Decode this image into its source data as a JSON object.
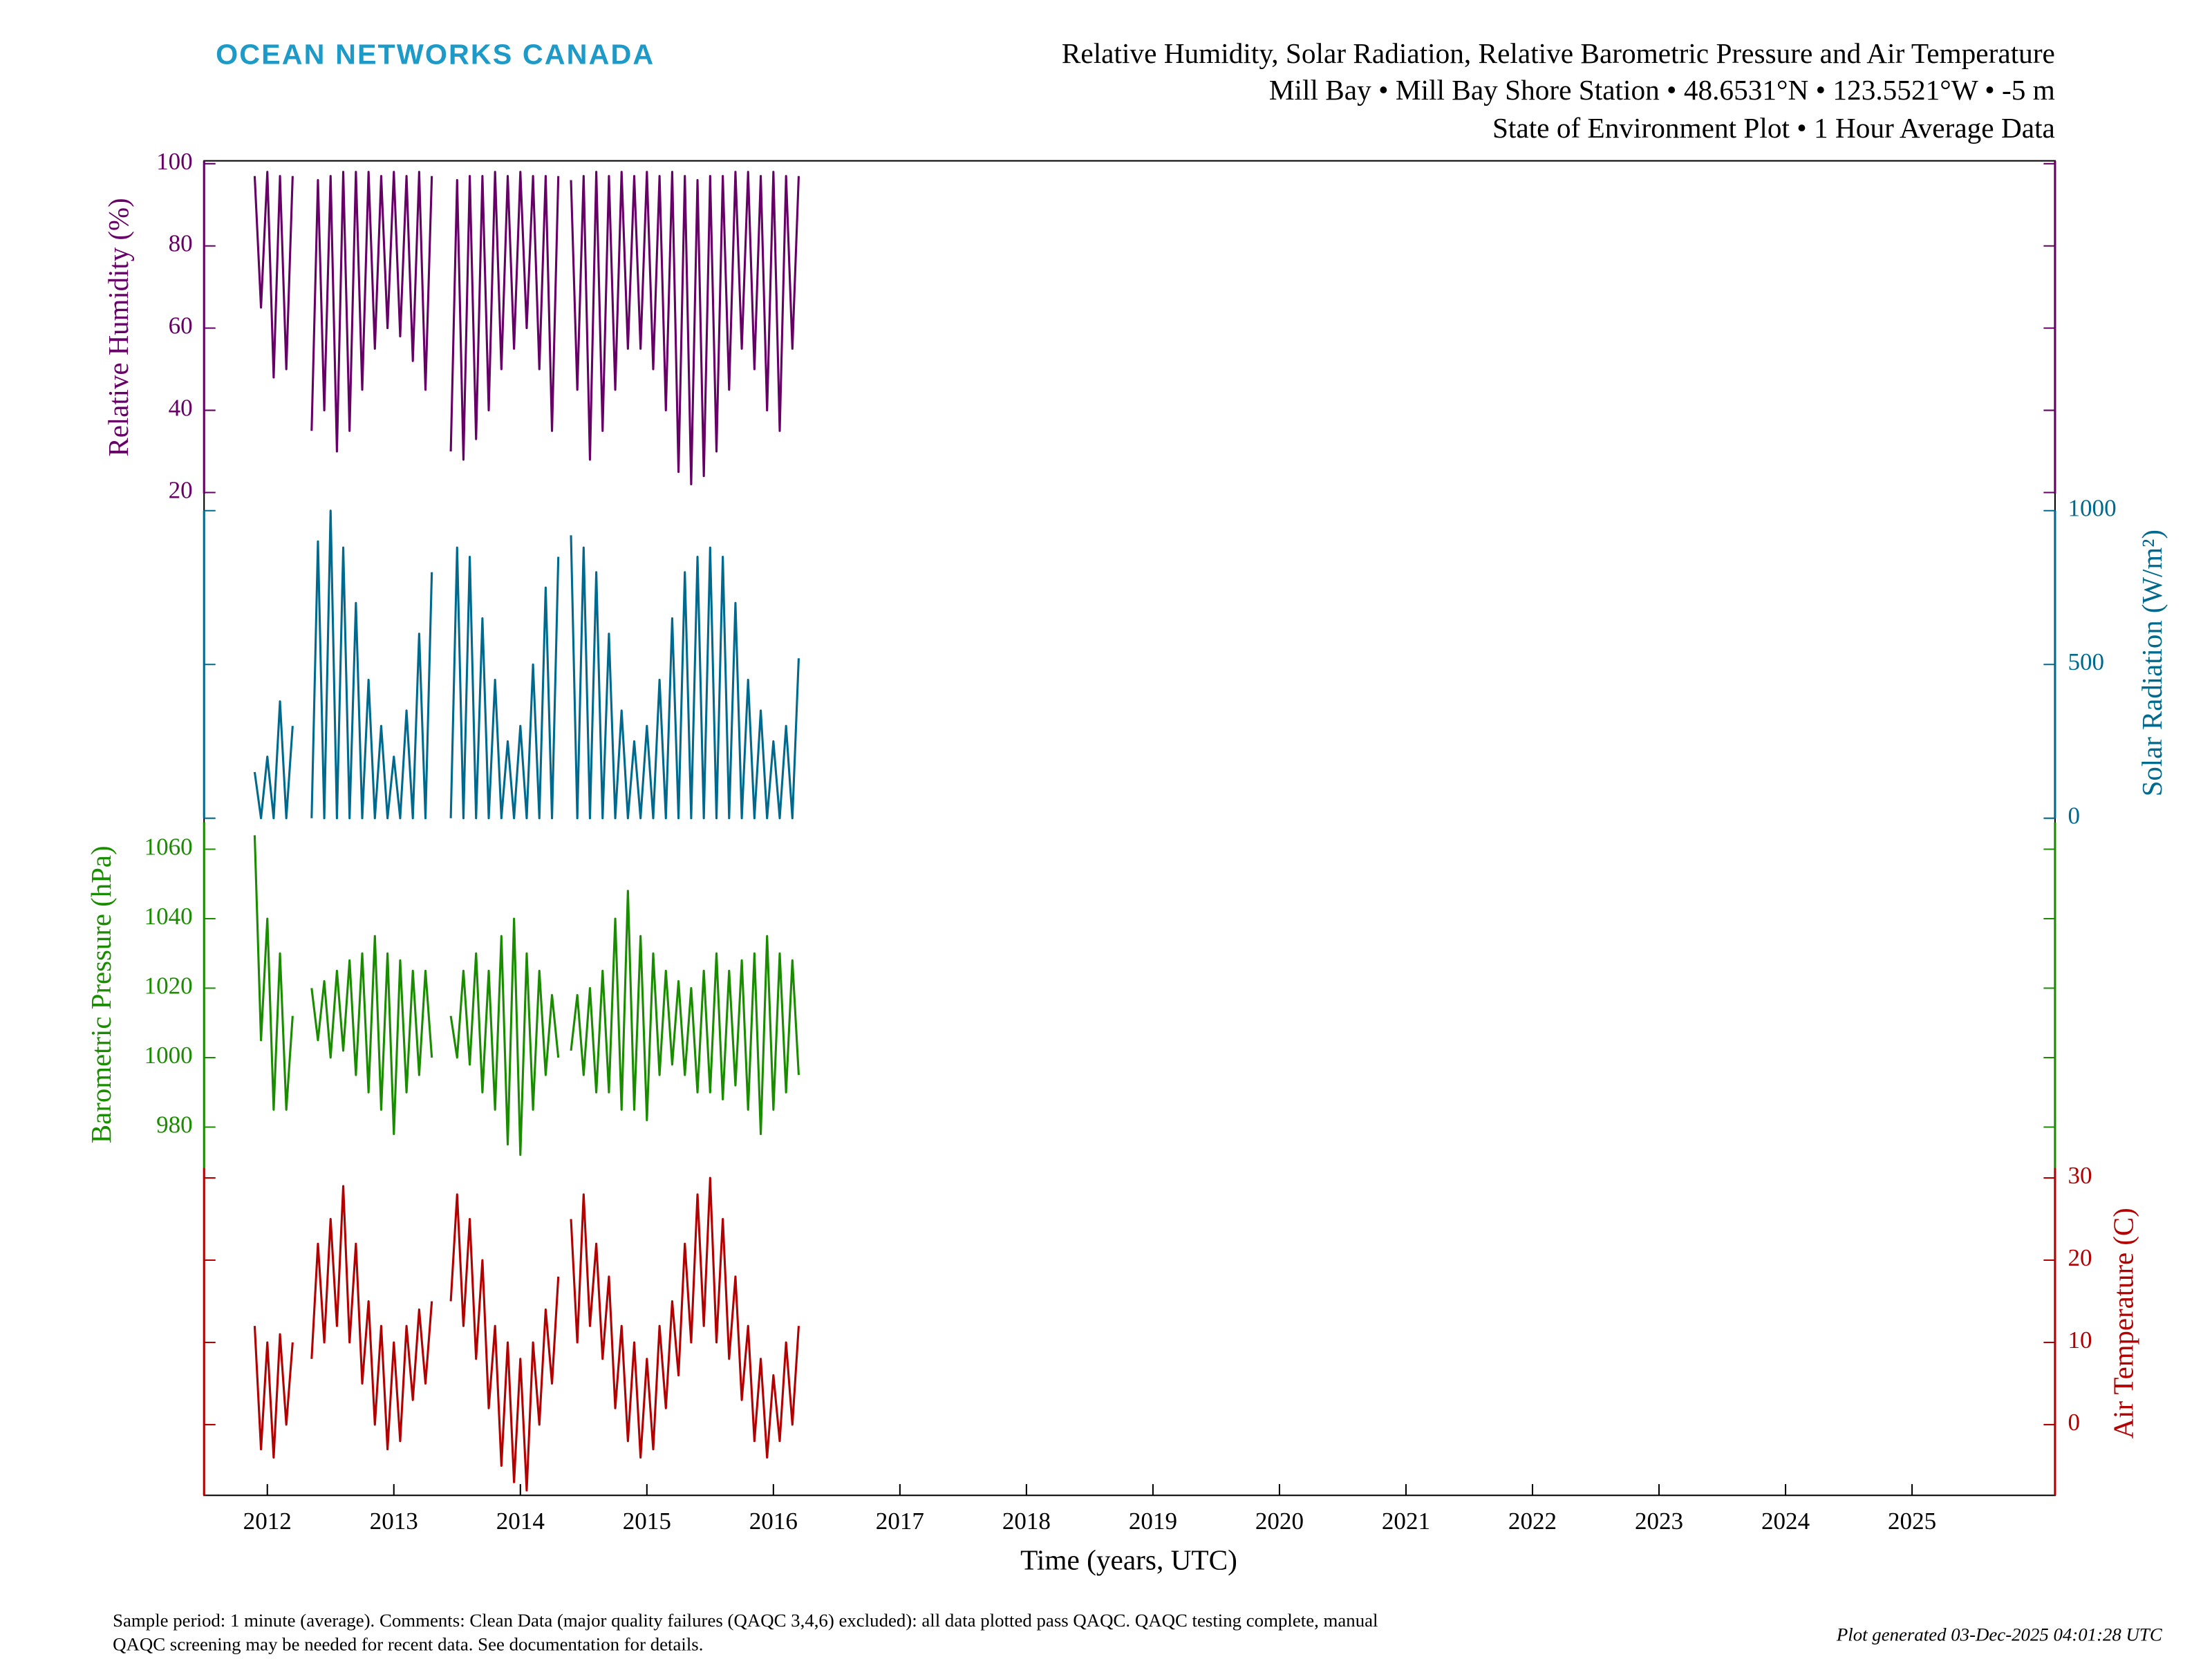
{
  "chart_data": {
    "type": "line",
    "logo": "OCEAN NETWORKS CANADA",
    "title": [
      "Relative Humidity, Solar Radiation, Relative Barometric Pressure and Air Temperature",
      "Mill Bay • Mill Bay Shore Station • 48.6531°N • 123.5521°W • -5 m",
      "State of Environment Plot • 1 Hour Average Data"
    ],
    "xlabel": "Time (years, UTC)",
    "xlim": [
      2011.5,
      2026.13
    ],
    "xticks": [
      2012,
      2013,
      2014,
      2015,
      2016,
      2017,
      2018,
      2019,
      2020,
      2021,
      2022,
      2023,
      2024,
      2025
    ],
    "x": [
      2011.9,
      2011.95,
      2012.0,
      2012.05,
      2012.1,
      2012.15,
      2012.2,
      2012.25,
      2012.3,
      2012.35,
      2012.4,
      2012.45,
      2012.5,
      2012.55,
      2012.6,
      2012.65,
      2012.7,
      2012.75,
      2012.8,
      2012.85,
      2012.9,
      2012.95,
      2013.0,
      2013.05,
      2013.1,
      2013.15,
      2013.2,
      2013.25,
      2013.3,
      2013.35,
      2013.4,
      2013.45,
      2013.5,
      2013.55,
      2013.6,
      2013.65,
      2013.7,
      2013.75,
      2013.8,
      2013.85,
      2013.9,
      2013.95,
      2014.0,
      2014.05,
      2014.1,
      2014.15,
      2014.2,
      2014.25,
      2014.3,
      2014.35,
      2014.4,
      2014.45,
      2014.5,
      2014.55,
      2014.6,
      2014.65,
      2014.7,
      2014.75,
      2014.8,
      2014.85,
      2014.9,
      2014.95,
      2015.0,
      2015.05,
      2015.1,
      2015.15,
      2015.2,
      2015.25,
      2015.3,
      2015.35,
      2015.4,
      2015.45,
      2015.5,
      2015.55,
      2015.6,
      2015.65,
      2015.7,
      2015.75,
      2015.8,
      2015.85,
      2015.9,
      2015.95,
      2016.0,
      2016.05,
      2016.1,
      2016.15,
      2016.2
    ],
    "panels": [
      {
        "label": "Relative Humidity (%)",
        "color": "#660066",
        "side": "left",
        "ylim": [
          19.7,
          100.7
        ],
        "yticks": [
          20,
          40,
          60,
          80,
          100
        ],
        "values": [
          97,
          65,
          98,
          48,
          97,
          50,
          97,
          null,
          null,
          35,
          96,
          40,
          97,
          30,
          98,
          35,
          98,
          45,
          98,
          55,
          97,
          60,
          98,
          58,
          97,
          52,
          98,
          45,
          97,
          null,
          null,
          30,
          96,
          28,
          97,
          33,
          97,
          40,
          98,
          50,
          97,
          55,
          98,
          60,
          97,
          50,
          97,
          35,
          97,
          null,
          96,
          45,
          97,
          28,
          98,
          35,
          97,
          45,
          98,
          55,
          97,
          55,
          98,
          50,
          97,
          40,
          98,
          25,
          97,
          22,
          96,
          24,
          97,
          30,
          97,
          45,
          98,
          55,
          98,
          50,
          97,
          40,
          98,
          35,
          97,
          55,
          97
        ]
      },
      {
        "label": "Solar Radiation (W/m²)",
        "color": "#006a8e",
        "side": "right",
        "ylim": [
          0,
          1000
        ],
        "yticks": [
          0,
          500,
          1000
        ],
        "values": [
          150,
          0,
          200,
          0,
          380,
          0,
          300,
          null,
          null,
          0,
          900,
          0,
          1000,
          0,
          880,
          0,
          700,
          0,
          450,
          0,
          300,
          0,
          200,
          0,
          350,
          0,
          600,
          0,
          800,
          null,
          null,
          0,
          880,
          0,
          850,
          0,
          650,
          0,
          450,
          0,
          250,
          0,
          300,
          0,
          500,
          0,
          750,
          0,
          850,
          null,
          920,
          0,
          880,
          0,
          800,
          0,
          600,
          0,
          350,
          0,
          250,
          0,
          300,
          0,
          450,
          0,
          650,
          0,
          800,
          0,
          850,
          0,
          880,
          0,
          850,
          0,
          700,
          0,
          450,
          0,
          350,
          0,
          250,
          0,
          300,
          0,
          520
        ]
      },
      {
        "label": "Barometric Pressure (hPa)",
        "color": "#1a8c00",
        "side": "left",
        "ylim": [
          968.2,
          1067.7
        ],
        "yticks": [
          980,
          1000,
          1020,
          1040,
          1060
        ],
        "values": [
          1064,
          1005,
          1040,
          985,
          1030,
          985,
          1012,
          null,
          null,
          1020,
          1005,
          1022,
          1000,
          1025,
          1002,
          1028,
          995,
          1030,
          990,
          1035,
          985,
          1030,
          978,
          1028,
          990,
          1025,
          995,
          1025,
          1000,
          null,
          null,
          1012,
          1000,
          1025,
          998,
          1030,
          990,
          1025,
          985,
          1035,
          975,
          1040,
          972,
          1030,
          985,
          1025,
          995,
          1018,
          1000,
          null,
          1002,
          1018,
          995,
          1020,
          990,
          1025,
          990,
          1040,
          985,
          1048,
          985,
          1035,
          982,
          1030,
          995,
          1025,
          998,
          1022,
          995,
          1020,
          990,
          1025,
          990,
          1030,
          988,
          1025,
          992,
          1028,
          985,
          1030,
          978,
          1035,
          985,
          1030,
          990,
          1028,
          995
        ]
      },
      {
        "label": "Air Temperature (C)",
        "color": "#b30000",
        "side": "right",
        "ylim": [
          -8.6,
          31.2
        ],
        "yticks": [
          0,
          10,
          20,
          30
        ],
        "values": [
          12,
          -3,
          10,
          -4,
          11,
          0,
          10,
          null,
          null,
          8,
          22,
          10,
          25,
          12,
          29,
          10,
          22,
          5,
          15,
          0,
          12,
          -3,
          10,
          -2,
          12,
          3,
          14,
          5,
          15,
          null,
          null,
          15,
          28,
          12,
          25,
          8,
          20,
          2,
          12,
          -5,
          10,
          -7,
          8,
          -8,
          10,
          0,
          14,
          5,
          18,
          null,
          25,
          10,
          28,
          12,
          22,
          8,
          18,
          2,
          12,
          -2,
          10,
          -4,
          8,
          -3,
          12,
          2,
          15,
          6,
          22,
          10,
          28,
          12,
          30,
          10,
          25,
          8,
          18,
          3,
          12,
          -2,
          8,
          -4,
          6,
          -2,
          10,
          0,
          12
        ]
      }
    ],
    "footnote": [
      "Sample period: 1 minute (average). Comments: Clean Data (major quality failures (QAQC 3,4,6) excluded): all data plotted pass QAQC. QAQC testing complete, manual",
      "QAQC screening may be needed for recent data. See documentation for details."
    ],
    "generated": "Plot generated 03-Dec-2025 04:01:28 UTC"
  }
}
